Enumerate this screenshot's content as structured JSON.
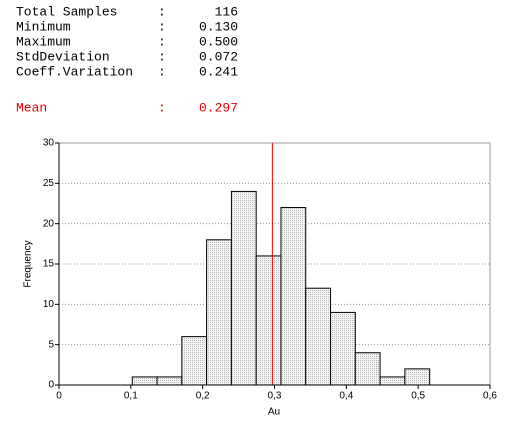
{
  "summary": {
    "separator": ":",
    "rows": [
      {
        "label": "Total Samples",
        "value": "116"
      },
      {
        "label": "Minimum",
        "value": "0.130"
      },
      {
        "label": "Maximum",
        "value": "0.500"
      },
      {
        "label": "StdDeviation",
        "value": "0.072"
      },
      {
        "label": "Coeff.Variation",
        "value": "0.241"
      }
    ],
    "mean": {
      "label": "Mean",
      "value": "0.297"
    }
  },
  "chart_data": {
    "type": "histogram",
    "xlabel": "Au",
    "ylabel": "Frequency",
    "bins": [
      0.102,
      0.1365,
      0.171,
      0.2055,
      0.24,
      0.2745,
      0.309,
      0.3435,
      0.378,
      0.4125,
      0.447,
      0.4815,
      0.516
    ],
    "counts": [
      1,
      1,
      6,
      18,
      24,
      16,
      22,
      12,
      9,
      4,
      1,
      2
    ],
    "color": "#e4e4e4",
    "xlim": [
      0,
      0.6
    ],
    "xticks": [
      0,
      {
        "value": 0.1,
        "label": "0,1"
      },
      {
        "value": 0.2,
        "label": "0,2"
      },
      {
        "value": 0.3,
        "label": "0,3"
      },
      {
        "value": 0.4,
        "label": "0,4"
      },
      {
        "value": 0.5,
        "label": "0,5"
      },
      {
        "value": 0.6,
        "label": "0,6"
      }
    ],
    "ylim": [
      0,
      30
    ],
    "yticks": [
      0,
      5,
      10,
      15,
      20,
      25,
      30
    ],
    "grid": true,
    "mean": 0.297,
    "mean_color": "#e00000"
  }
}
